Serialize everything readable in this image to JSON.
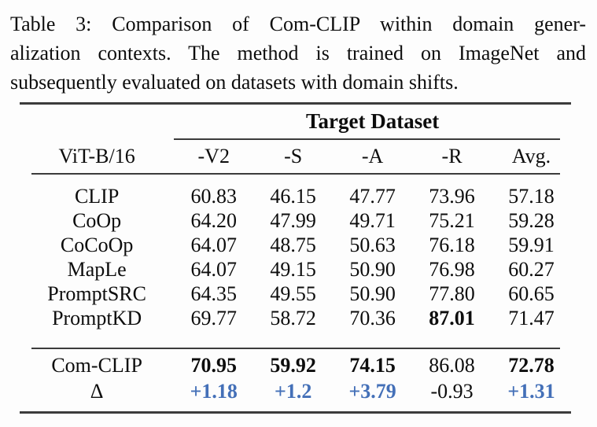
{
  "caption": {
    "lines": [
      "Table 3: Comparison of Com-CLIP within domain gener-",
      "alization contexts. The method is trained on ImageNet and",
      "subsequently evaluated on datasets with domain shifts."
    ]
  },
  "table": {
    "group_header": "Target Dataset",
    "columns": [
      "ViT-B/16",
      "-V2",
      "-S",
      "-A",
      "-R",
      "Avg."
    ],
    "rows": [
      {
        "label": "CLIP",
        "values": [
          "60.83",
          "46.15",
          "47.77",
          "73.96",
          "57.18"
        ]
      },
      {
        "label": "CoOp",
        "values": [
          "64.20",
          "47.99",
          "49.71",
          "75.21",
          "59.28"
        ]
      },
      {
        "label": "CoCoOp",
        "values": [
          "64.07",
          "48.75",
          "50.63",
          "76.18",
          "59.91"
        ]
      },
      {
        "label": "MapLe",
        "values": [
          "64.07",
          "49.15",
          "50.90",
          "76.98",
          "60.27"
        ]
      },
      {
        "label": "PromptSRC",
        "values": [
          "64.35",
          "49.55",
          "50.90",
          "77.80",
          "60.65"
        ]
      },
      {
        "label": "PromptKD",
        "values": [
          "69.77",
          "58.72",
          "70.36",
          "87.01",
          "71.47"
        ]
      }
    ],
    "result_row": {
      "label": "Com-CLIP",
      "values": [
        "70.95",
        "59.92",
        "74.15",
        "86.08",
        "72.78"
      ]
    },
    "delta_row": {
      "label": "Δ",
      "values": [
        "+1.18",
        "+1.2",
        "+3.79",
        "-0.93",
        "+1.31"
      ]
    },
    "colors": {
      "delta_positive": "#4470b8",
      "text": "#0d0d0d",
      "rule": "#3c3c3c"
    }
  }
}
